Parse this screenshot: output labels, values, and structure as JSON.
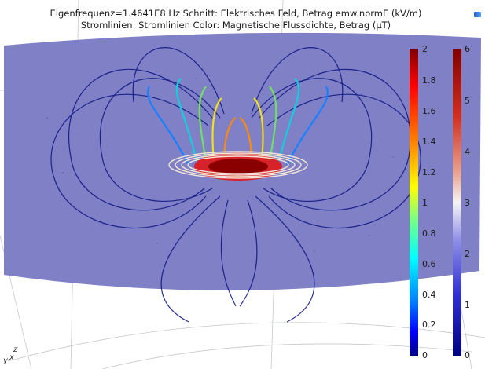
{
  "plot": {
    "title_line1": "Eigenfrequenz=1.4641E8 Hz   Schnitt: Elektrisches Feld, Betrag emw.normE (kV/m)",
    "title_line2": "Stromlinien:     Stromlinien Color: Magnetische Flussdichte, Betrag (µT)"
  },
  "colorbar_efield": {
    "ticks": [
      "2",
      "1.8",
      "1.6",
      "1.4",
      "1.2",
      "1",
      "0.8",
      "0.6",
      "0.4",
      "0.2",
      "0"
    ],
    "range": [
      0,
      2
    ]
  },
  "colorbar_bfield": {
    "ticks": [
      "6",
      "5",
      "4",
      "3",
      "2",
      "1",
      "0"
    ],
    "range": [
      0,
      6
    ]
  },
  "axes": {
    "x": "x",
    "y": "y",
    "z": "z"
  },
  "colors": {
    "slice_plane": "#7f7fc4",
    "streamline_dark": "#0a1280",
    "ring": "#f0e0d0"
  }
}
